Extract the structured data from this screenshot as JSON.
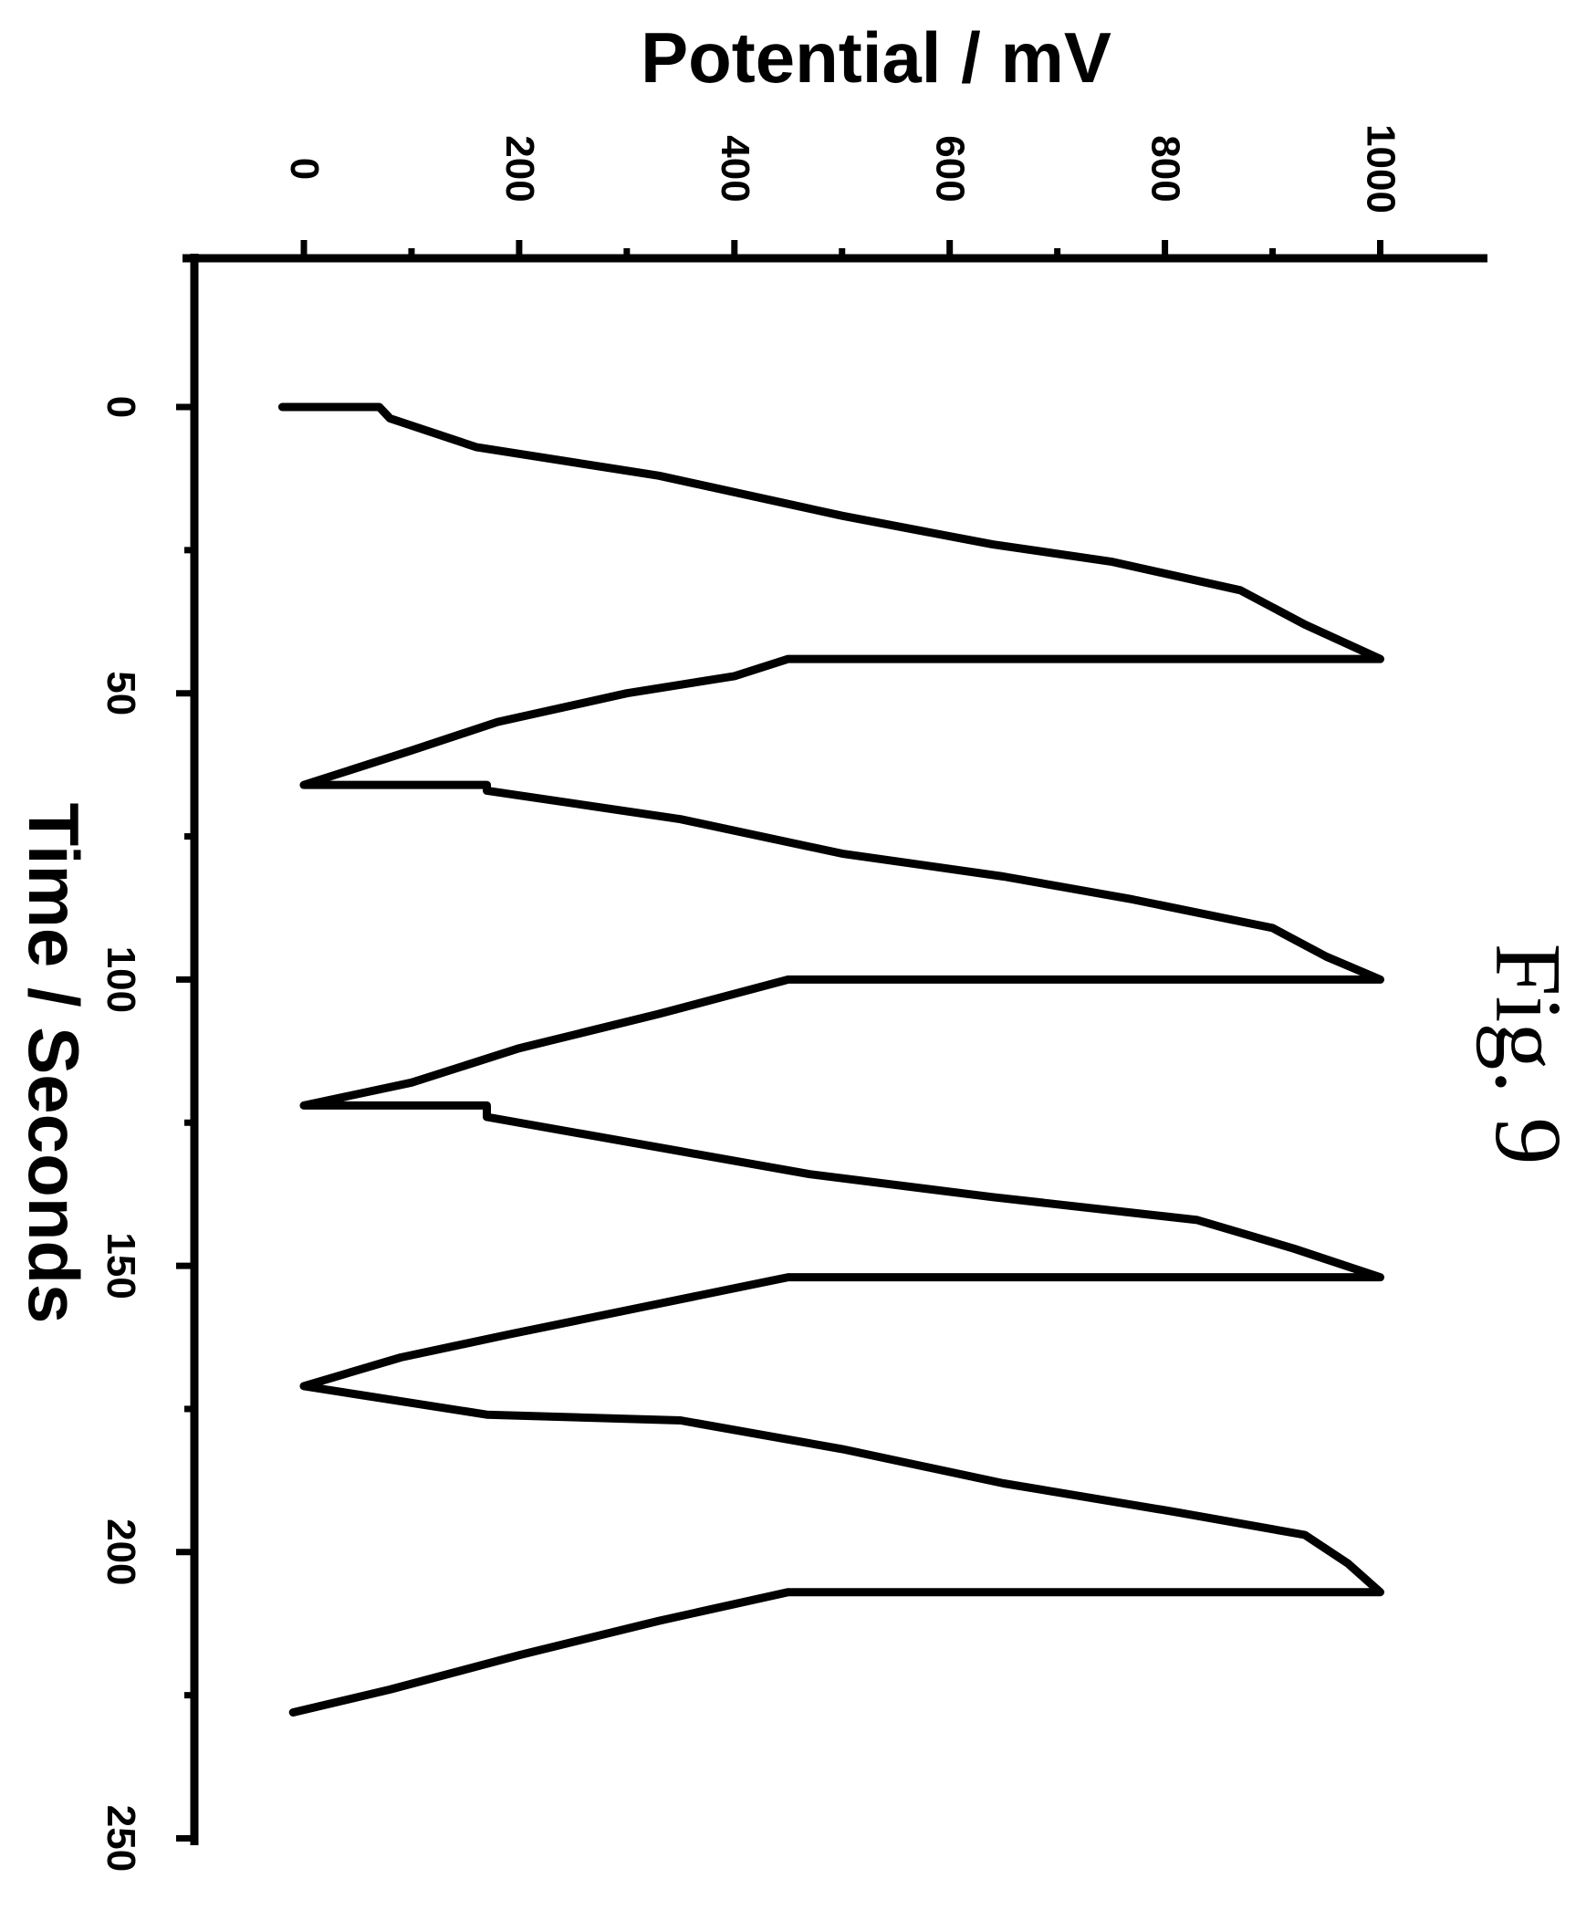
{
  "chart_data": {
    "type": "line",
    "orientation": "rotated 90 degrees clockwise (potential axis along top, time axis along left)",
    "caption": "Fig. 9",
    "xlabel": "Time / Seconds",
    "ylabel": "Potential / mV",
    "xlim": [
      -20,
      250
    ],
    "ylim": [
      -50,
      1050
    ],
    "x_ticks": [
      0,
      50,
      100,
      150,
      200,
      250
    ],
    "y_ticks": [
      0,
      200,
      400,
      600,
      800,
      1000
    ],
    "x_minor_ticks": [
      25,
      75,
      125,
      175,
      225
    ],
    "y_minor_ticks": [
      100,
      300,
      500,
      700,
      900
    ],
    "grid": false,
    "legend": "none",
    "series": [
      {
        "color": "#000000",
        "x": [
          0,
          0,
          2,
          7,
          12,
          19,
          24,
          27,
          32,
          38,
          44,
          44,
          44,
          47,
          50,
          55,
          60,
          66,
          66,
          67,
          72,
          78,
          82,
          86,
          91,
          96,
          100,
          100,
          100,
          106,
          112,
          118,
          122,
          122,
          124,
          130,
          134,
          138,
          142,
          147,
          152,
          152,
          152,
          157,
          162,
          166,
          171,
          176,
          176,
          177,
          182,
          188,
          193,
          197,
          202,
          207,
          207,
          207,
          212,
          218,
          224,
          228
        ],
        "y": [
          -20,
          70,
          80,
          160,
          330,
          500,
          640,
          750,
          870,
          930,
          1000,
          460,
          450,
          400,
          300,
          180,
          100,
          0,
          170,
          170,
          350,
          500,
          650,
          770,
          900,
          950,
          1000,
          460,
          450,
          330,
          200,
          100,
          0,
          170,
          170,
          350,
          470,
          640,
          830,
          920,
          1000,
          460,
          450,
          320,
          190,
          90,
          0,
          170,
          170,
          350,
          500,
          650,
          810,
          930,
          970,
          1000,
          460,
          450,
          330,
          200,
          80,
          -10
        ]
      }
    ]
  }
}
